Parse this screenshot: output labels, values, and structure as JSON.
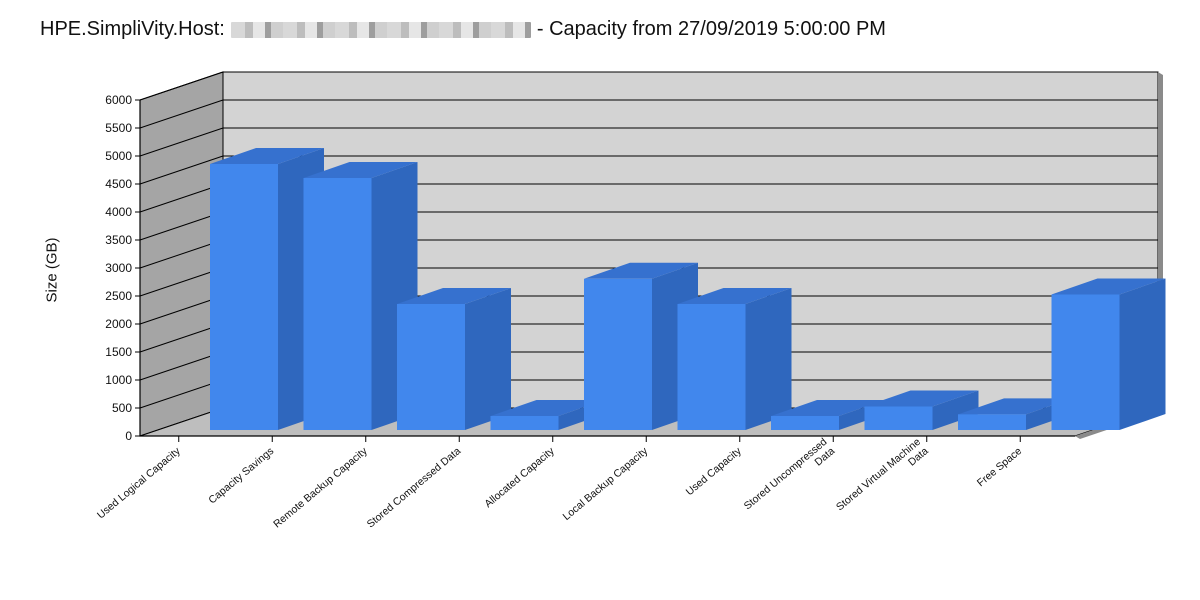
{
  "header": {
    "title_prefix": "HPE.SimpliVity.Host:",
    "title_suffix": "- Capacity from 27/09/2019 5:00:00 PM"
  },
  "colors": {
    "bar_front": "#4187ED",
    "bar_top": "#3671CF",
    "bar_side": "#2F67BE",
    "back_wall": "#D3D3D3",
    "side_wall": "#A5A5A5",
    "floor": "#BEBEBE"
  },
  "chart_data": {
    "type": "bar",
    "style": "3d",
    "title": "",
    "ylabel": "Size (GB)",
    "xlabel": "",
    "ylim": [
      0,
      6000
    ],
    "y_ticks": [
      "0",
      "500",
      "1000",
      "1500",
      "2000",
      "2500",
      "3000",
      "3500",
      "4000",
      "4500",
      "5000",
      "5500",
      "6000"
    ],
    "grid": true,
    "legend": "none",
    "categories": [
      [
        "Used Logical Capacity"
      ],
      [
        "Capacity Savings"
      ],
      [
        "Remote Backup Capacity"
      ],
      [
        "Stored Compressed Data"
      ],
      [
        "Allocated Capacity"
      ],
      [
        "Local Backup Capacity"
      ],
      [
        "Used Capacity"
      ],
      [
        "Stored Uncompressed",
        "Data"
      ],
      [
        "Stored Virtual Machine",
        "Data"
      ],
      [
        "Free Space"
      ]
    ],
    "values": [
      4750,
      4500,
      2250,
      250,
      2700,
      2250,
      250,
      420,
      280,
      2420
    ]
  }
}
